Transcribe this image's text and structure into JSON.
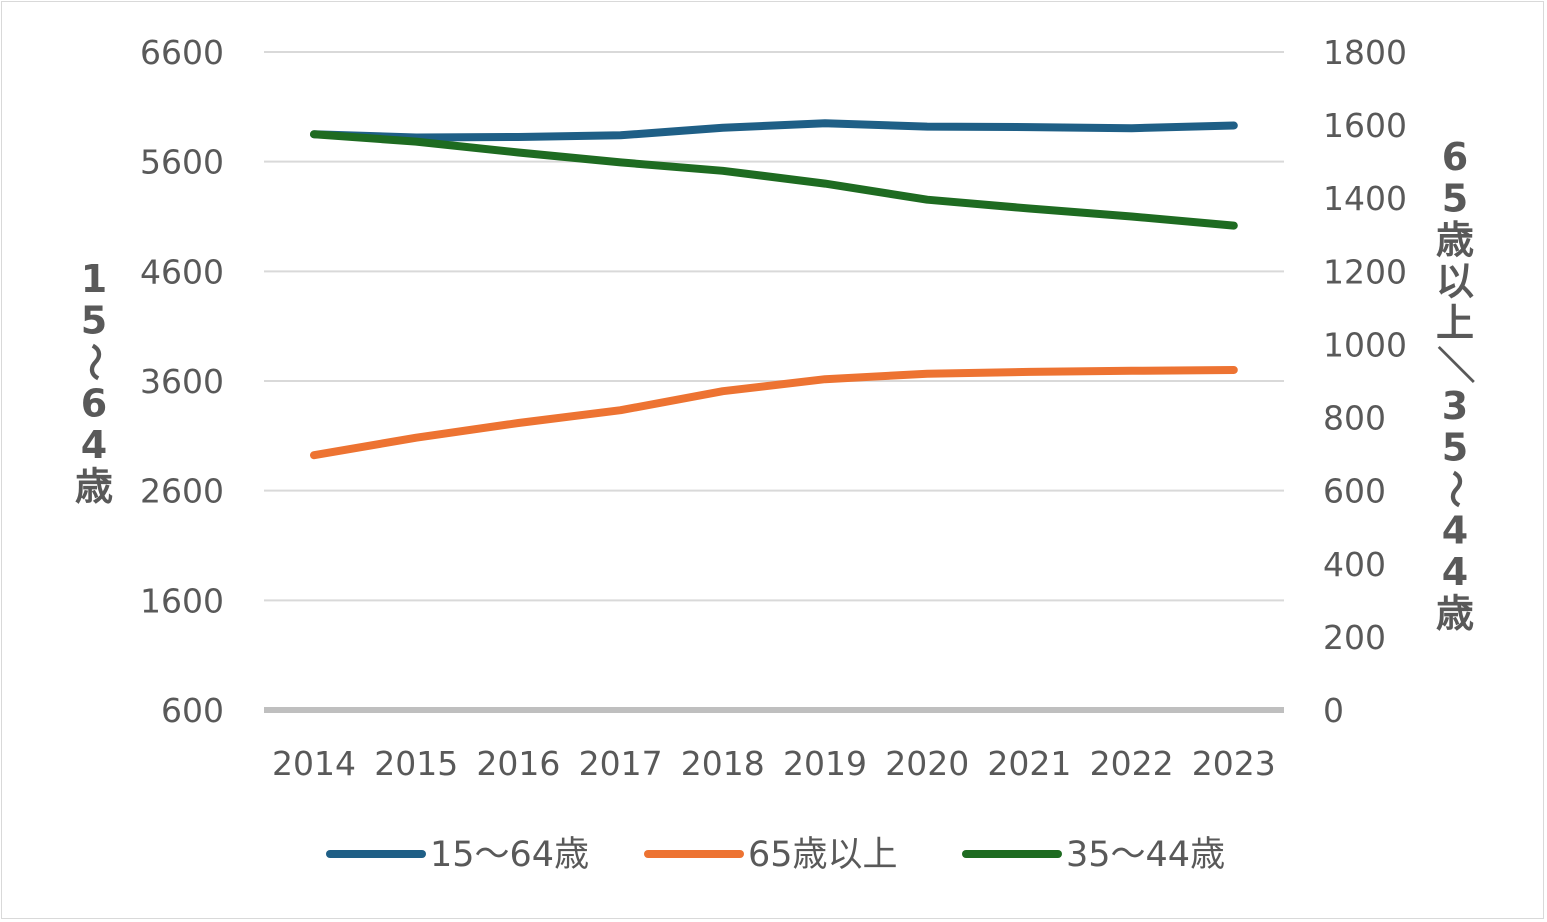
{
  "chart_data": {
    "type": "line",
    "categories": [
      "2014",
      "2015",
      "2016",
      "2017",
      "2018",
      "2019",
      "2020",
      "2021",
      "2022",
      "2023"
    ],
    "y_left": {
      "label": "15〜64歳",
      "ylim": [
        600,
        6600
      ],
      "ticks": [
        "600",
        "1600",
        "2600",
        "3600",
        "4600",
        "5600",
        "6600"
      ],
      "tick_values": [
        600,
        1600,
        2600,
        3600,
        4600,
        5600,
        6600
      ]
    },
    "y_right": {
      "label": "65歳以上／35〜44歳",
      "ylim": [
        0,
        1800
      ],
      "ticks": [
        "0",
        "200",
        "400",
        "600",
        "800",
        "1000",
        "1200",
        "1400",
        "1600",
        "1800"
      ],
      "tick_values": [
        0,
        200,
        400,
        600,
        800,
        1000,
        1200,
        1400,
        1600,
        1800
      ]
    },
    "series": [
      {
        "name": "15〜64歳",
        "axis": "left",
        "color": "#1f5f86",
        "values": [
          5850,
          5820,
          5825,
          5840,
          5910,
          5950,
          5920,
          5915,
          5905,
          5930
        ]
      },
      {
        "name": "65歳以上",
        "axis": "right",
        "color": "#ed7332",
        "values": [
          697,
          745,
          785,
          820,
          872,
          905,
          920,
          925,
          928,
          930
        ]
      },
      {
        "name": "35〜44歳",
        "axis": "right",
        "color": "#1e6b21",
        "values": [
          1575,
          1555,
          1525,
          1498,
          1475,
          1440,
          1396,
          1372,
          1350,
          1325
        ]
      }
    ],
    "grid": true,
    "legend_position": "bottom"
  }
}
